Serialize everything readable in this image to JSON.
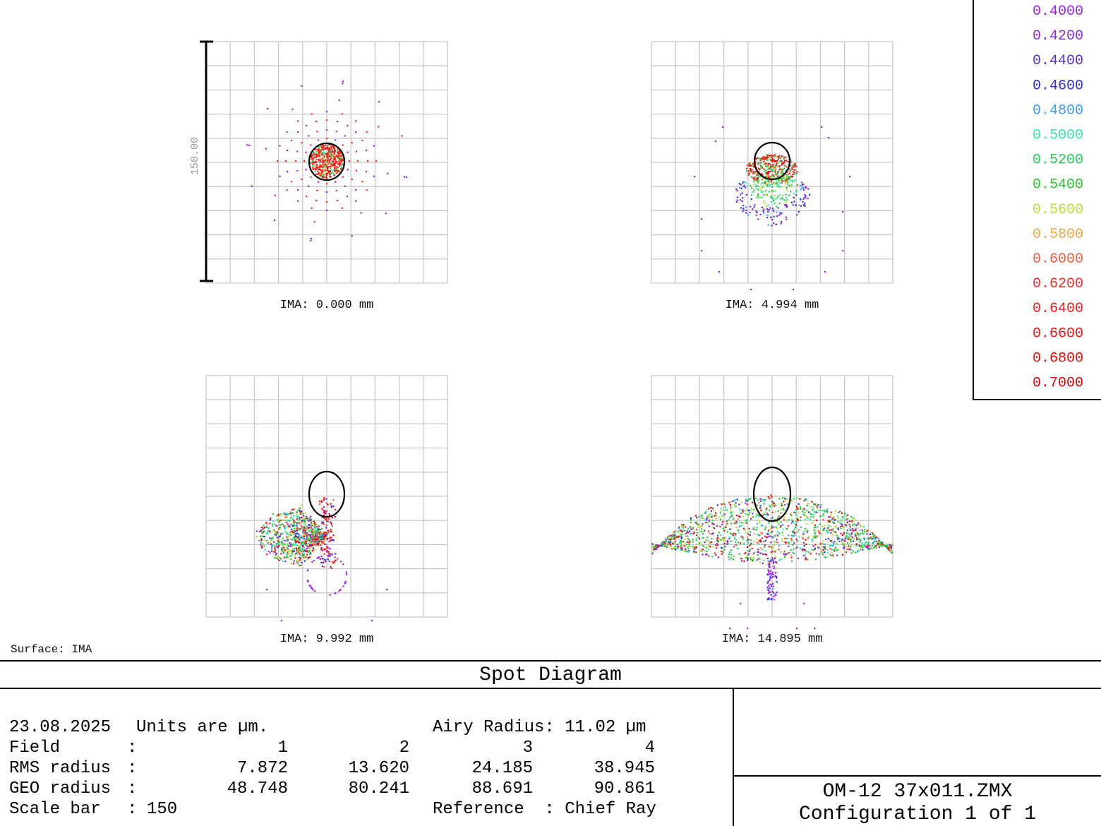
{
  "surface_label": "Surface: IMA",
  "scale_label": "150.00",
  "plots": [
    {
      "label": "IMA: 0.000 mm"
    },
    {
      "label": "IMA: 4.994 mm"
    },
    {
      "label": "IMA: 9.992 mm"
    },
    {
      "label": "IMA: 14.895 mm"
    }
  ],
  "legend": [
    {
      "wl": "0.4000",
      "color": "#a020f0"
    },
    {
      "wl": "0.4200",
      "color": "#8a2be2"
    },
    {
      "wl": "0.4400",
      "color": "#5b2be0"
    },
    {
      "wl": "0.4600",
      "color": "#2f2fe6"
    },
    {
      "wl": "0.4800",
      "color": "#3a9bff"
    },
    {
      "wl": "0.5000",
      "color": "#33e6b0"
    },
    {
      "wl": "0.5200",
      "color": "#22d05a"
    },
    {
      "wl": "0.5400",
      "color": "#28c828"
    },
    {
      "wl": "0.5600",
      "color": "#b6e13b"
    },
    {
      "wl": "0.5800",
      "color": "#f2a640"
    },
    {
      "wl": "0.6000",
      "color": "#ff5a3a"
    },
    {
      "wl": "0.6200",
      "color": "#ff2a2a"
    },
    {
      "wl": "0.6400",
      "color": "#ff1a1a"
    },
    {
      "wl": "0.6600",
      "color": "#ff1010"
    },
    {
      "wl": "0.6800",
      "color": "#ff0000"
    },
    {
      "wl": "0.7000",
      "color": "#ee0000"
    }
  ],
  "title": "Spot Diagram",
  "info": {
    "date": "23.08.2025",
    "units": "Units are µm.",
    "airy": "Airy Radius: 11.02 µm",
    "field_label": "Field",
    "rms_label": "RMS radius",
    "geo_label": "GEO radius",
    "scale_label": "Scale bar",
    "sep": ":",
    "fields": [
      "1",
      "2",
      "3",
      "4"
    ],
    "rms": [
      "7.872",
      "13.620",
      "24.185",
      "38.945"
    ],
    "geo": [
      "48.748",
      "80.241",
      "88.691",
      "90.861"
    ],
    "scale_value": "150",
    "reference": "Reference  : Chief Ray"
  },
  "file": {
    "name": "OM-12 37x011.ZMX",
    "config": "Configuration 1 of 1"
  }
}
